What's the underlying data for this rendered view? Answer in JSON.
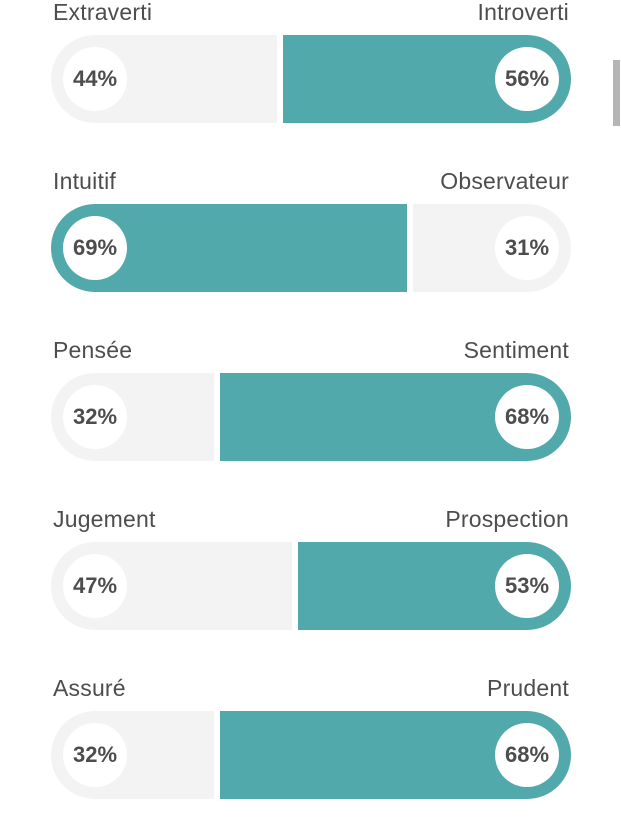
{
  "traits": [
    {
      "left_label": "Extraverti",
      "right_label": "Introverti",
      "left_pct": "44%",
      "right_pct": "56%",
      "dominant": "right",
      "left_value": 44,
      "right_value": 56
    },
    {
      "left_label": "Intuitif",
      "right_label": "Observateur",
      "left_pct": "69%",
      "right_pct": "31%",
      "dominant": "left",
      "left_value": 69,
      "right_value": 31
    },
    {
      "left_label": "Pensée",
      "right_label": "Sentiment",
      "left_pct": "32%",
      "right_pct": "68%",
      "dominant": "right",
      "left_value": 32,
      "right_value": 68
    },
    {
      "left_label": "Jugement",
      "right_label": "Prospection",
      "left_pct": "47%",
      "right_pct": "53%",
      "dominant": "right",
      "left_value": 47,
      "right_value": 53
    },
    {
      "left_label": "Assuré",
      "right_label": "Prudent",
      "left_pct": "32%",
      "right_pct": "68%",
      "dominant": "right",
      "left_value": 32,
      "right_value": 68
    }
  ],
  "colors": {
    "accent": "#52a9ab",
    "track": "#f3f3f3",
    "text": "#4d4d4d"
  }
}
